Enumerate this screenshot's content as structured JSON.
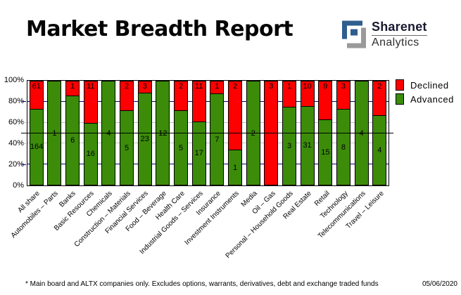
{
  "header": {
    "title": "Market Breadth Report",
    "logo": {
      "brand": "Sharenet",
      "sub": "Analytics",
      "blue": "#2d5e8e",
      "gray": "#9a9a9a"
    }
  },
  "chart_data": {
    "type": "bar",
    "variant": "stacked-100-percent-column",
    "title": "Market Breadth Report",
    "xlabel": "",
    "ylabel": "",
    "ylim": [
      0,
      100
    ],
    "y_ticks": [
      "0%",
      "20%",
      "40%",
      "60%",
      "80%",
      "100%"
    ],
    "legend_position": "top-right-outside",
    "categories": [
      "All share",
      "Automobiles – Parts",
      "Banks",
      "Basic Resources",
      "Chemicals",
      "Construction – Materials",
      "Financial Services",
      "Food – Beverage",
      "Health Care",
      "Industrial Goods – Services",
      "Insurance",
      "Investment Instruments",
      "Media",
      "Oil – Gas",
      "Personal – Household Goods",
      "Real Estate",
      "Retail",
      "Technology",
      "Telecommunications",
      "Travel – Leisure"
    ],
    "series": [
      {
        "name": "Declined",
        "color": "#ff0000",
        "values": [
          61,
          0,
          1,
          11,
          0,
          2,
          3,
          0,
          2,
          11,
          1,
          2,
          0,
          3,
          1,
          10,
          9,
          3,
          0,
          2
        ]
      },
      {
        "name": "Advanced",
        "color": "#3c8c0a",
        "values": [
          164,
          1,
          6,
          16,
          4,
          5,
          23,
          12,
          5,
          17,
          7,
          1,
          2,
          0,
          3,
          31,
          15,
          8,
          4,
          4
        ]
      }
    ],
    "gridlines": [
      {
        "pct": 20,
        "color": "#000080",
        "over": false
      },
      {
        "pct": 40,
        "color": "#c0c0c0",
        "over": false
      },
      {
        "pct": 60,
        "color": "#c0c0c0",
        "over": false
      },
      {
        "pct": 80,
        "color": "#000080",
        "over": false
      },
      {
        "pct": 50,
        "color": "#000000",
        "over": true
      }
    ]
  },
  "footnote": {
    "text": "* Main board and ALTX companies only. Excludes options, warrants, derivatives, debt and exchange traded funds",
    "date": "05/06/2020"
  }
}
